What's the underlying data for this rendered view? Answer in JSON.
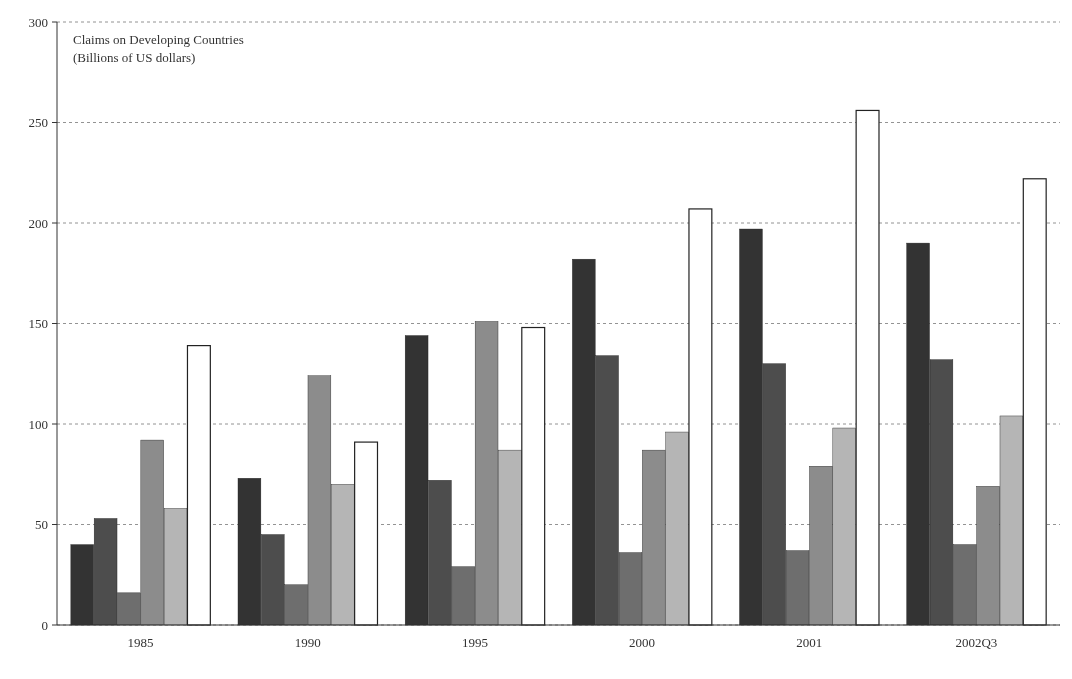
{
  "chart_data": {
    "type": "bar",
    "title": "Claims on Developing Countries",
    "subtitle": "(Billions of US dollars)",
    "categories": [
      "1985",
      "1990",
      "1995",
      "2000",
      "2001",
      "2002Q3"
    ],
    "series": [
      {
        "color": "#333333",
        "values": [
          40,
          73,
          144,
          182,
          197,
          190
        ]
      },
      {
        "color": "#4d4d4d",
        "values": [
          53,
          45,
          72,
          134,
          130,
          132
        ]
      },
      {
        "color": "#6e6e6e",
        "values": [
          16,
          20,
          29,
          36,
          37,
          40
        ]
      },
      {
        "color": "#8c8c8c",
        "values": [
          92,
          124,
          151,
          87,
          79,
          69
        ]
      },
      {
        "color": "#b5b5b5",
        "values": [
          58,
          70,
          87,
          96,
          98,
          104
        ]
      },
      {
        "color": "#ffffff",
        "values": [
          139,
          91,
          148,
          207,
          256,
          222
        ]
      }
    ],
    "ylim": [
      0,
      300
    ],
    "yticks": [
      0,
      50,
      100,
      150,
      200,
      250,
      300
    ],
    "grid": "y"
  }
}
